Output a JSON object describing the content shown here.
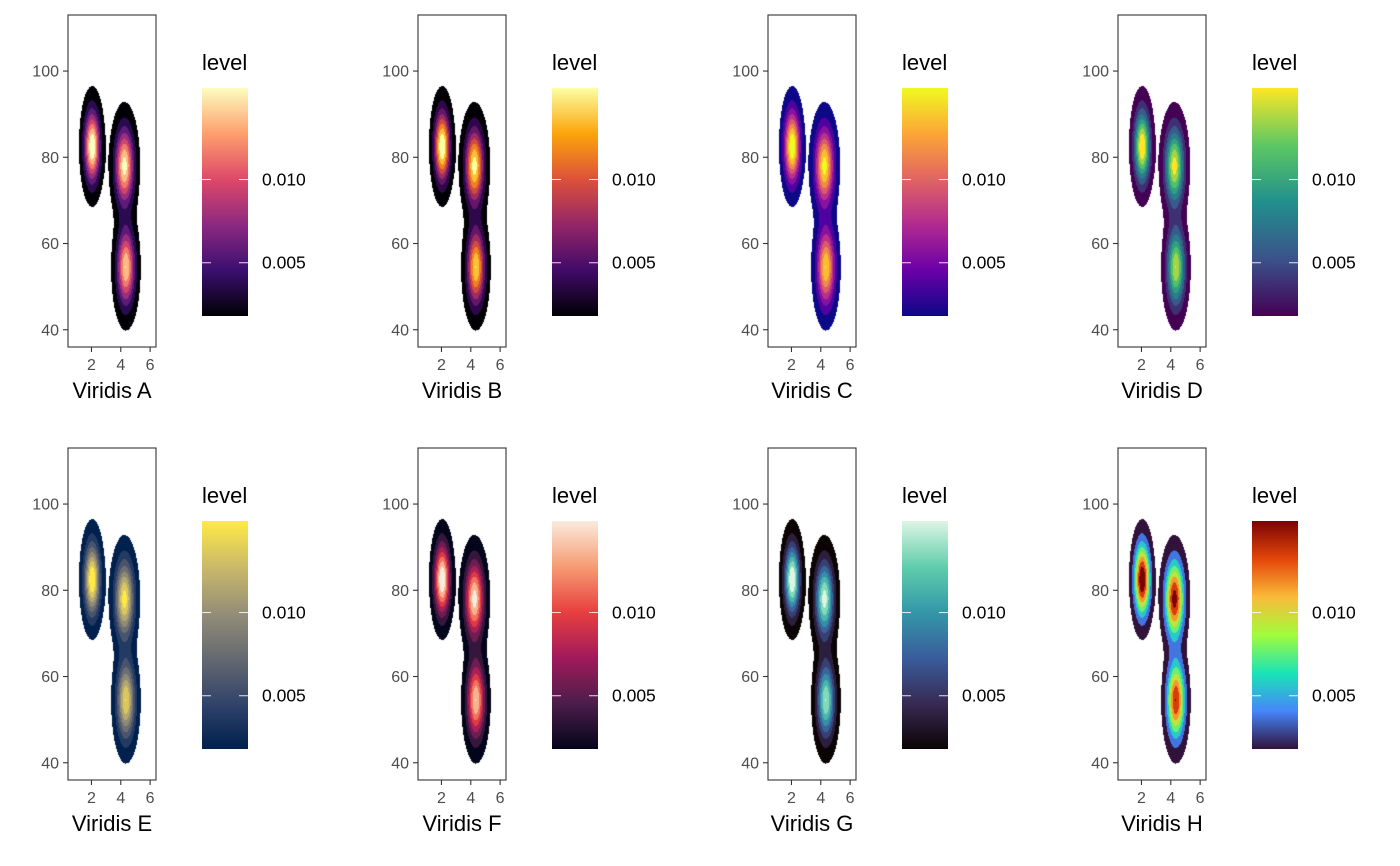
{
  "chart_data": [
    {
      "type": "contour-density",
      "xlabel": "Viridis A",
      "option": "A",
      "legend": {
        "title": "level",
        "labels": [
          "0.010",
          "0.005"
        ],
        "values": [
          0.01,
          0.005
        ]
      },
      "xlim": [
        0.4,
        6.4
      ],
      "ylim": [
        36,
        113
      ],
      "xticks": [
        2,
        4,
        6
      ],
      "yticks": [
        40,
        60,
        80,
        100
      ],
      "colors": [
        "#000004",
        "#3B0F70",
        "#8C2981",
        "#DE4968",
        "#FE9F6D",
        "#FCFDBF"
      ],
      "outline": "#000004"
    },
    {
      "type": "contour-density",
      "xlabel": "Viridis B",
      "option": "B",
      "legend": {
        "title": "level",
        "labels": [
          "0.010",
          "0.005"
        ],
        "values": [
          0.01,
          0.005
        ]
      },
      "xlim": [
        0.4,
        6.4
      ],
      "ylim": [
        36,
        113
      ],
      "xticks": [
        2,
        4,
        6
      ],
      "yticks": [
        40,
        60,
        80,
        100
      ],
      "colors": [
        "#000004",
        "#420A68",
        "#932667",
        "#DD513A",
        "#FCA50A",
        "#FCFFA4"
      ],
      "outline": "#000004"
    },
    {
      "type": "contour-density",
      "xlabel": "Viridis C",
      "option": "C",
      "legend": {
        "title": "level",
        "labels": [
          "0.010",
          "0.005"
        ],
        "values": [
          0.01,
          0.005
        ]
      },
      "xlim": [
        0.4,
        6.4
      ],
      "ylim": [
        36,
        113
      ],
      "xticks": [
        2,
        4,
        6
      ],
      "yticks": [
        40,
        60,
        80,
        100
      ],
      "colors": [
        "#0D0887",
        "#6A00A8",
        "#B12A90",
        "#E16462",
        "#FCA636",
        "#F0F921"
      ],
      "outline": "#0D0887"
    },
    {
      "type": "contour-density",
      "xlabel": "Viridis D",
      "option": "D",
      "legend": {
        "title": "level",
        "labels": [
          "0.010",
          "0.005"
        ],
        "values": [
          0.01,
          0.005
        ]
      },
      "xlim": [
        0.4,
        6.4
      ],
      "ylim": [
        36,
        113
      ],
      "xticks": [
        2,
        4,
        6
      ],
      "yticks": [
        40,
        60,
        80,
        100
      ],
      "colors": [
        "#440154",
        "#3B528B",
        "#21908C",
        "#5DC863",
        "#FDE725"
      ],
      "outline": "#440154"
    },
    {
      "type": "contour-density",
      "xlabel": "Viridis E",
      "option": "E",
      "legend": {
        "title": "level",
        "labels": [
          "0.010",
          "0.005"
        ],
        "values": [
          0.01,
          0.005
        ]
      },
      "xlim": [
        0.4,
        6.4
      ],
      "ylim": [
        36,
        113
      ],
      "xticks": [
        2,
        4,
        6
      ],
      "yticks": [
        40,
        60,
        80,
        100
      ],
      "colors": [
        "#00204D",
        "#31446B",
        "#666970",
        "#958F78",
        "#CBBA69",
        "#FFEA46"
      ],
      "outline": "#00204D"
    },
    {
      "type": "contour-density",
      "xlabel": "Viridis F",
      "option": "F",
      "legend": {
        "title": "level",
        "labels": [
          "0.010",
          "0.005"
        ],
        "values": [
          0.01,
          0.005
        ]
      },
      "xlim": [
        0.4,
        6.4
      ],
      "ylim": [
        36,
        113
      ],
      "xticks": [
        2,
        4,
        6
      ],
      "yticks": [
        40,
        60,
        80,
        100
      ],
      "colors": [
        "#03051A",
        "#4C1D4B",
        "#A11A5B",
        "#E83F3F",
        "#F69C73",
        "#FAEBDD"
      ],
      "outline": "#03051A"
    },
    {
      "type": "contour-density",
      "xlabel": "Viridis G",
      "option": "G",
      "legend": {
        "title": "level",
        "labels": [
          "0.010",
          "0.005"
        ],
        "values": [
          0.01,
          0.005
        ]
      },
      "xlim": [
        0.4,
        6.4
      ],
      "ylim": [
        36,
        113
      ],
      "xticks": [
        2,
        4,
        6
      ],
      "yticks": [
        40,
        60,
        80,
        100
      ],
      "colors": [
        "#0B0405",
        "#382A54",
        "#395D9C",
        "#3497A9",
        "#60CEAC",
        "#DEF5E5"
      ],
      "outline": "#0B0405"
    },
    {
      "type": "contour-density",
      "xlabel": "Viridis H",
      "option": "H",
      "legend": {
        "title": "level",
        "labels": [
          "0.010",
          "0.005"
        ],
        "values": [
          0.01,
          0.005
        ]
      },
      "xlim": [
        0.4,
        6.4
      ],
      "ylim": [
        36,
        113
      ],
      "xticks": [
        2,
        4,
        6
      ],
      "yticks": [
        40,
        60,
        80,
        100
      ],
      "colors": [
        "#30123B",
        "#4686FB",
        "#1AE4B6",
        "#A2FC3C",
        "#FABA39",
        "#E4460A",
        "#7A0403"
      ],
      "outline": "#30123B"
    }
  ]
}
